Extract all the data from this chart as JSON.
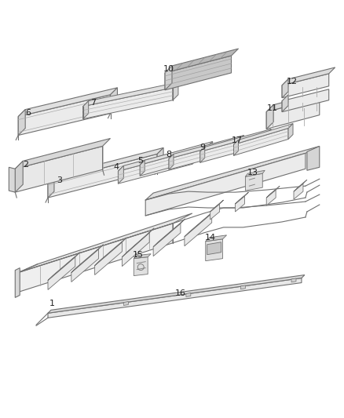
{
  "background_color": "#ffffff",
  "line_color": "#707070",
  "label_color": "#222222",
  "figsize": [
    4.38,
    5.33
  ],
  "dpi": 100
}
